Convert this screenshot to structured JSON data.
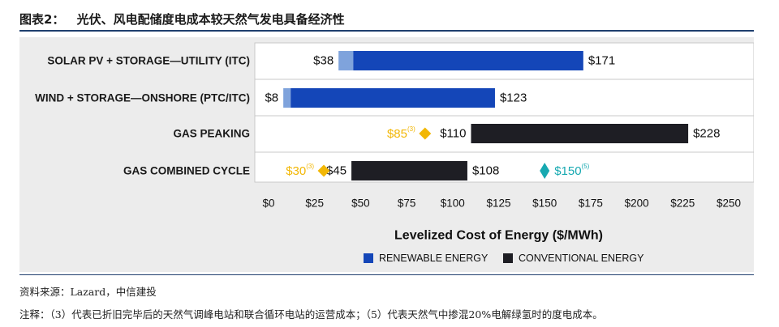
{
  "figure": {
    "label": "图表2：",
    "title": "光伏、风电配储度电成本较天然气发电具备经济性"
  },
  "colors": {
    "renewable": "#1446b8",
    "renewable_light": "#7fa3dc",
    "conventional": "#1e1e24",
    "gas_marker": "#f2b705",
    "hydrogen_marker": "#17a9b1",
    "frame": "#c8c8c8"
  },
  "chart_data": {
    "type": "bar",
    "orientation": "horizontal-floating-range",
    "xlabel": "Levelized Cost of Energy ($/MWh)",
    "xlim": [
      0,
      250
    ],
    "x_ticks": [
      0,
      25,
      50,
      75,
      100,
      125,
      150,
      175,
      200,
      225,
      250
    ],
    "x_tick_labels": [
      "$0",
      "$25",
      "$50",
      "$75",
      "$100",
      "$125",
      "$150",
      "$175",
      "$200",
      "$225",
      "$250"
    ],
    "grid": false,
    "legend_placement": "bottom-center",
    "legend": [
      {
        "label": "RENEWABLE ENERGY",
        "color": "#1446b8"
      },
      {
        "label": "CONVENTIONAL ENERGY",
        "color": "#1e1e24"
      }
    ],
    "rows": [
      {
        "category": "SOLAR PV + STORAGE—UTILITY (ITC)",
        "group": "renewable",
        "light_start": 38,
        "low": 46,
        "high": 171,
        "low_label": "$38",
        "high_label": "$171",
        "markers": []
      },
      {
        "category": "WIND + STORAGE—ONSHORE (PTC/ITC)",
        "group": "renewable",
        "light_start": 8,
        "low": 12,
        "high": 123,
        "low_label": "$8",
        "high_label": "$123",
        "markers": []
      },
      {
        "category": "GAS PEAKING",
        "group": "conventional",
        "low": 110,
        "high": 228,
        "low_label": "$110",
        "high_label": "$228",
        "markers": [
          {
            "value": 85,
            "label": "$85",
            "sup": "(3)",
            "color": "#f2b705",
            "shape": "diamond"
          }
        ]
      },
      {
        "category": "GAS COMBINED CYCLE",
        "group": "conventional",
        "low": 45,
        "high": 108,
        "low_label": "$45",
        "high_label": "$108",
        "markers": [
          {
            "value": 30,
            "label": "$30",
            "sup": "(3)",
            "color": "#f2b705",
            "shape": "diamond"
          },
          {
            "value": 150,
            "label": "$150",
            "sup": "(5)",
            "color": "#17a9b1",
            "shape": "tall-diamond"
          }
        ]
      }
    ]
  },
  "source": "资料来源：Lazard，中信建投",
  "note": "注释：（3）代表已折旧完毕后的天然气调峰电站和联合循环电站的运营成本；（5）代表天然气中掺混20%电解绿氢时的度电成本。"
}
